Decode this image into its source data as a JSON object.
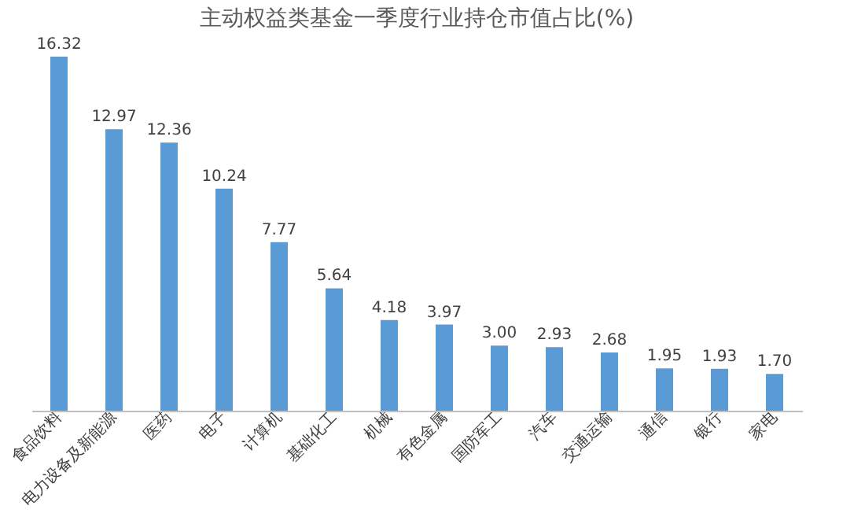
{
  "chart_data": {
    "type": "bar",
    "title": "主动权益类基金一季度行业持仓市值占比(%)",
    "categories": [
      "食品饮料",
      "电力设备及新能源",
      "医药",
      "电子",
      "计算机",
      "基础化工",
      "机械",
      "有色金属",
      "国防军工",
      "汽车",
      "交通运输",
      "通信",
      "银行",
      "家电"
    ],
    "values": [
      16.32,
      12.97,
      12.36,
      10.24,
      7.77,
      5.64,
      4.18,
      3.97,
      3.0,
      2.93,
      2.68,
      1.95,
      1.93,
      1.7
    ],
    "value_labels": [
      "16.32",
      "12.97",
      "12.36",
      "10.24",
      "7.77",
      "5.64",
      "4.18",
      "3.97",
      "3.00",
      "2.93",
      "2.68",
      "1.95",
      "1.93",
      "1.70"
    ],
    "color": "#5b9bd5",
    "grid": false,
    "tick_labels": "x"
  }
}
